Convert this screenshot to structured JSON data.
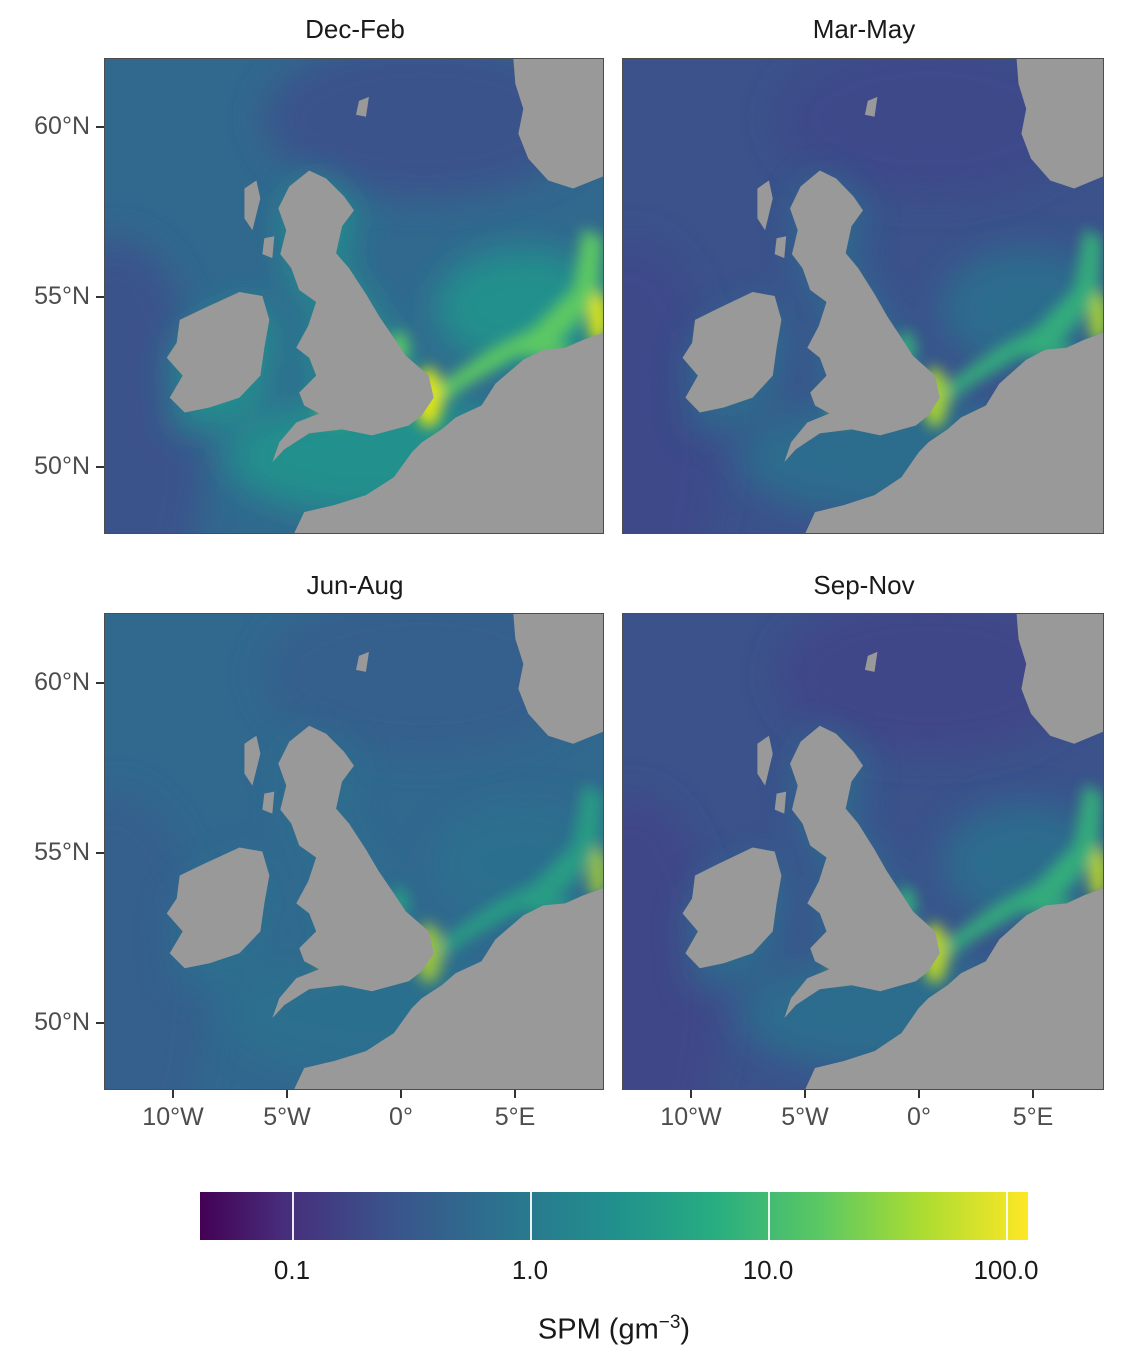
{
  "panels": [
    {
      "title": "Dec-Feb"
    },
    {
      "title": "Mar-May"
    },
    {
      "title": "Jun-Aug"
    },
    {
      "title": "Sep-Nov"
    }
  ],
  "y_axis": {
    "ticks": [
      "60°N",
      "55°N",
      "50°N"
    ]
  },
  "x_axis": {
    "ticks": [
      "10°W",
      "5°W",
      "0°",
      "5°E"
    ]
  },
  "legend": {
    "title_main": "SPM (gm",
    "title_sup": "−3",
    "title_close": ")",
    "ticks": [
      "0.1",
      "1.0",
      "10.0",
      "100.0"
    ]
  },
  "chart_data": {
    "type": "heatmap",
    "facets": [
      "Dec-Feb",
      "Mar-May",
      "Jun-Aug",
      "Sep-Nov"
    ],
    "x_range_deg": [
      -13,
      8.8
    ],
    "y_range_deg": [
      48,
      62
    ],
    "x_ticks": [
      "10°W",
      "5°W",
      "0°",
      "5°E"
    ],
    "y_ticks": [
      "60°N",
      "55°N",
      "50°N"
    ],
    "color_scale": "viridis",
    "color_scale_type": "log10",
    "colorbar_ticks": [
      0.1,
      1.0,
      10.0,
      100.0
    ],
    "colorbar_label": "SPM (gm^-3)",
    "legend_position": "bottom",
    "land_color": "#999999",
    "colors": {
      "viridis_low": "#440154",
      "viridis_mid": "#21908d",
      "viridis_high": "#fde725"
    }
  }
}
